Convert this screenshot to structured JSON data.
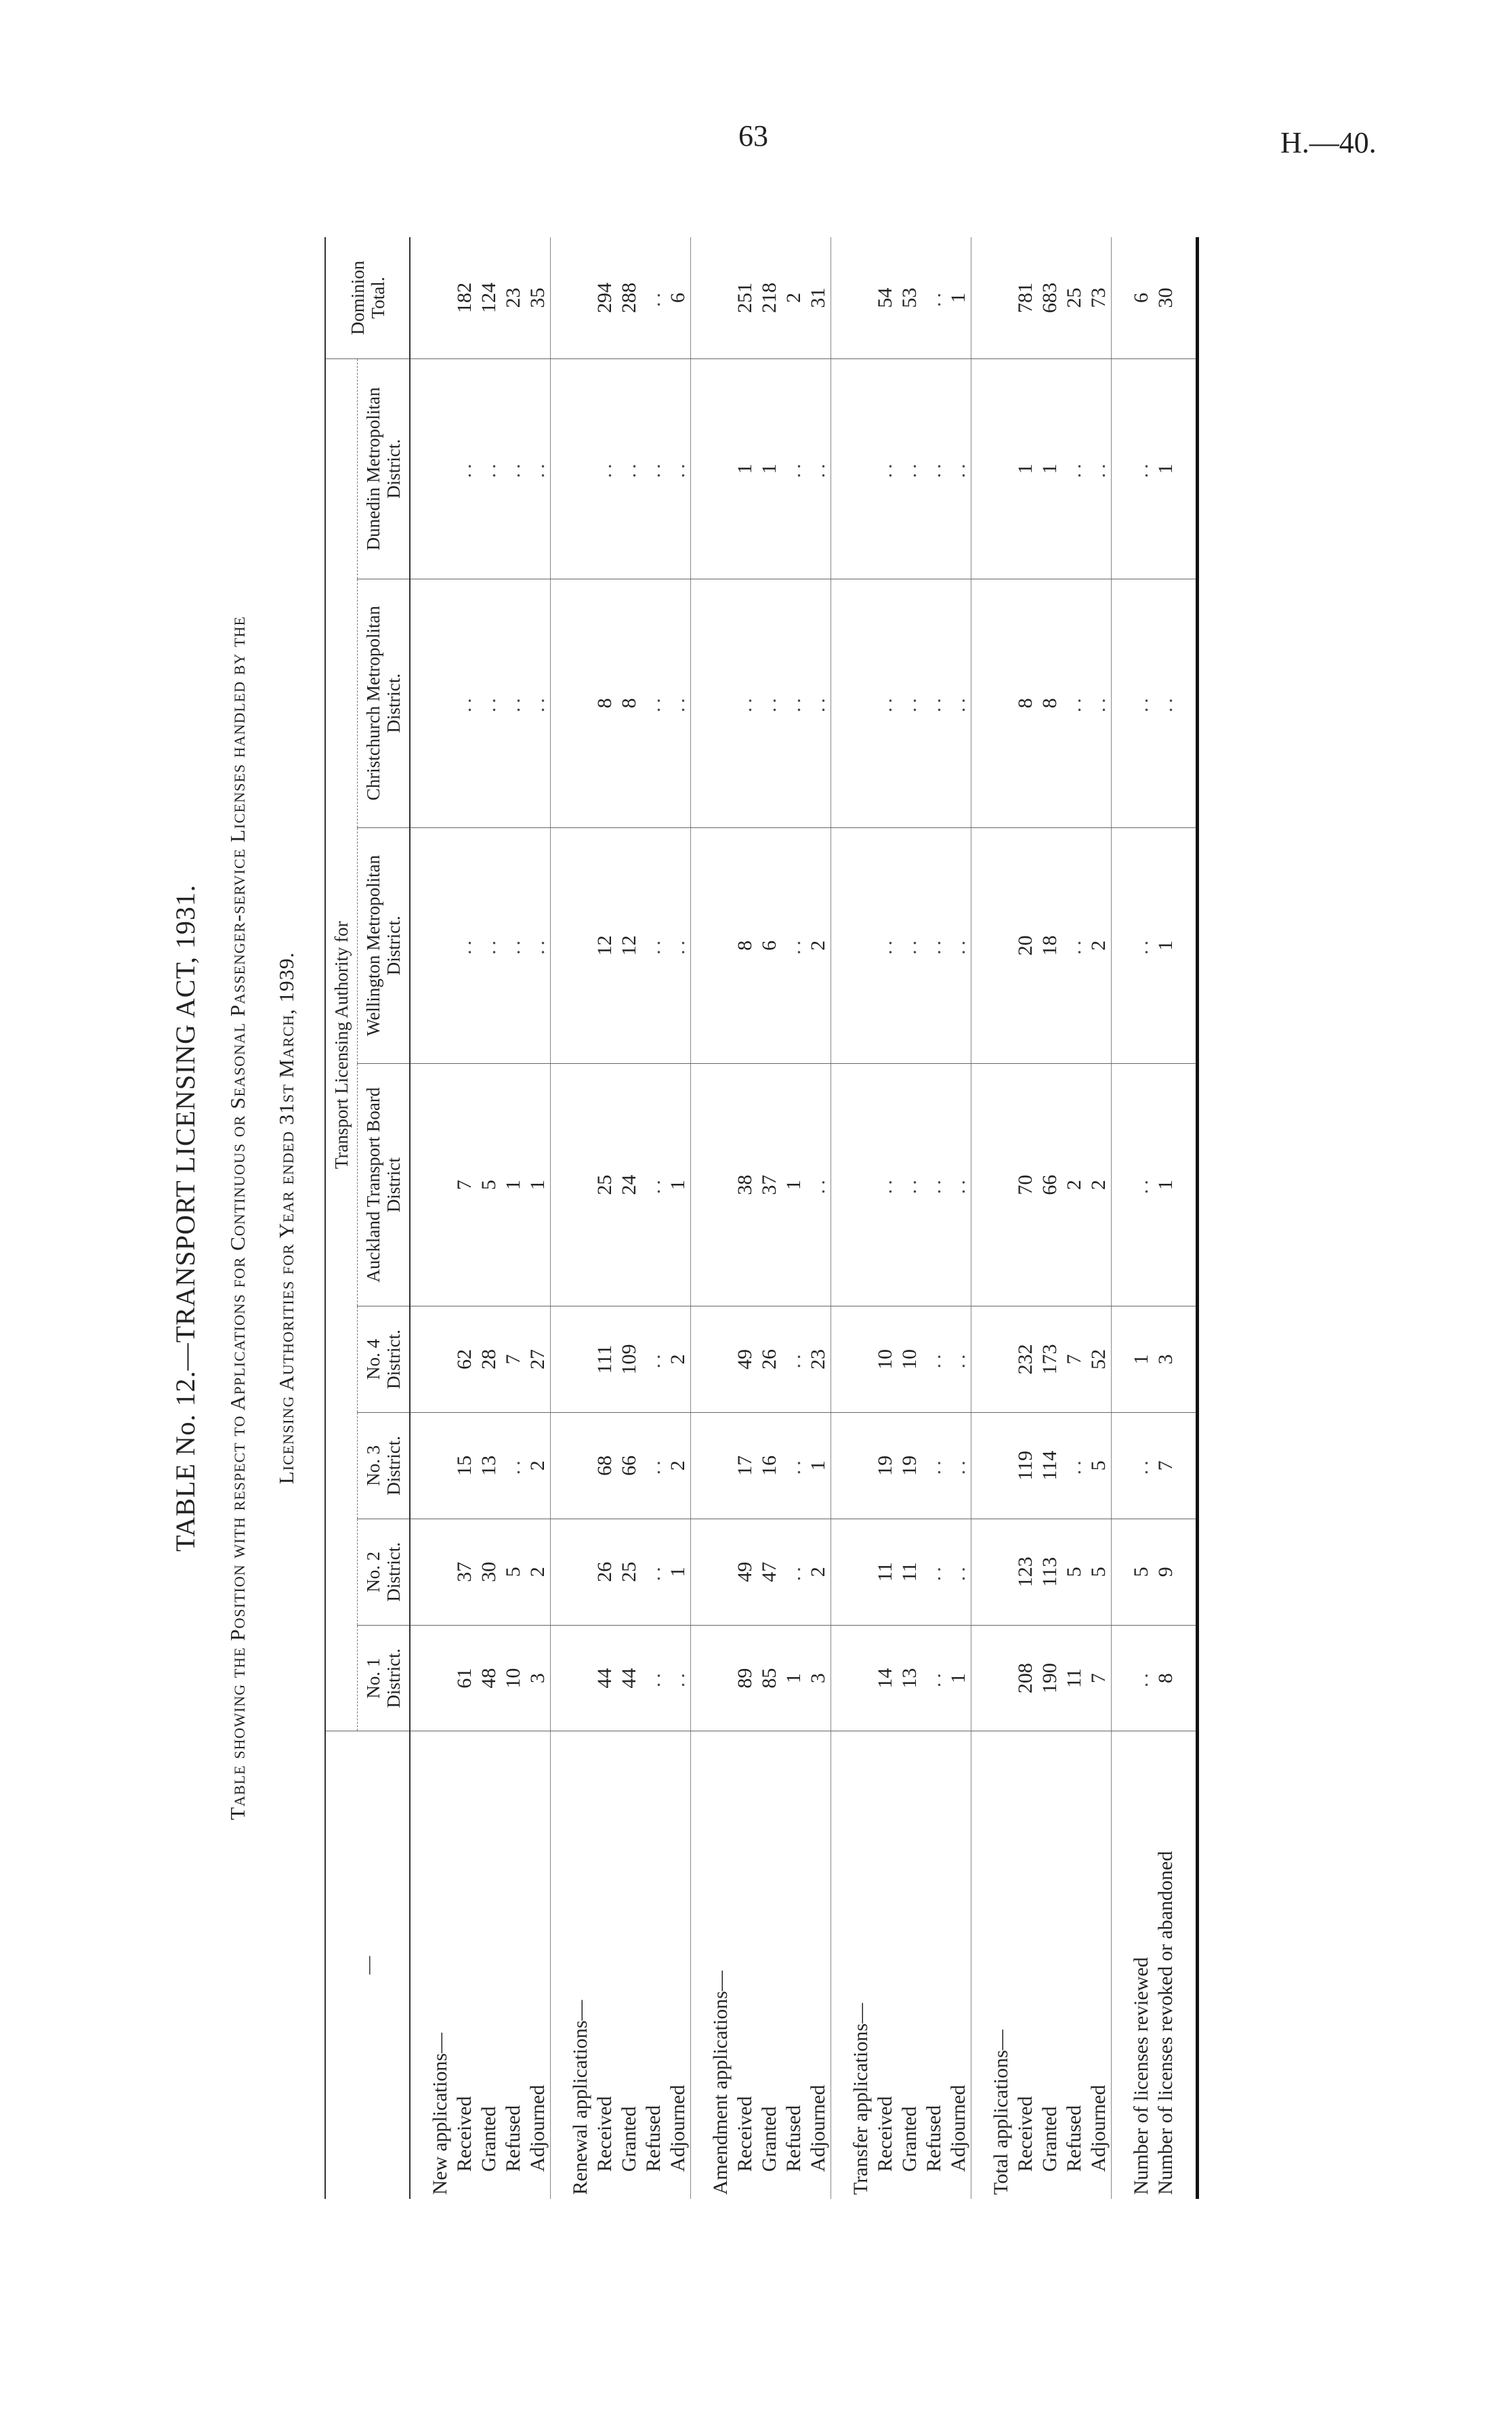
{
  "page_number": "63",
  "document_ref": "H.—40.",
  "title": "TABLE No. 12.—TRANSPORT LICENSING ACT, 1931.",
  "subtitle_line1": "Table showing the Position with respect to Applications for Continuous or Seasonal Passenger-service Licenses handled by the",
  "subtitle_line2": "Licensing Authorities for Year ended 31st March, 1939.",
  "group_header": "Transport Licensing Authority for",
  "columns": [
    "No. 1 District.",
    "No. 2 District.",
    "No. 3 District.",
    "No. 4 District.",
    "Auckland Transport Board District",
    "Wellington Metropolitan District.",
    "Christchurch Metropolitan District.",
    "Dunedin Metropolitan District.",
    "Dominion Total."
  ],
  "groups": [
    {
      "heading": "New applications—",
      "rows": [
        {
          "label": "Received",
          "values": [
            "61",
            "37",
            "15",
            "62",
            "7",
            "..",
            "..",
            "..",
            "182"
          ]
        },
        {
          "label": "Granted",
          "values": [
            "48",
            "30",
            "13",
            "28",
            "5",
            "..",
            "..",
            "..",
            "124"
          ]
        },
        {
          "label": "Refused",
          "values": [
            "10",
            "5",
            "..",
            "7",
            "1",
            "..",
            "..",
            "..",
            "23"
          ]
        },
        {
          "label": "Adjourned",
          "values": [
            "3",
            "2",
            "2",
            "27",
            "1",
            "..",
            "..",
            "..",
            "35"
          ]
        }
      ]
    },
    {
      "heading": "Renewal applications—",
      "rows": [
        {
          "label": "Received",
          "values": [
            "44",
            "26",
            "68",
            "111",
            "25",
            "12",
            "8",
            "..",
            "294"
          ]
        },
        {
          "label": "Granted",
          "values": [
            "44",
            "25",
            "66",
            "109",
            "24",
            "12",
            "8",
            "..",
            "288"
          ]
        },
        {
          "label": "Refused",
          "values": [
            "..",
            "..",
            "..",
            "..",
            "..",
            "..",
            "..",
            "..",
            ".."
          ]
        },
        {
          "label": "Adjourned",
          "values": [
            "..",
            "1",
            "2",
            "2",
            "1",
            "..",
            "..",
            "..",
            "6"
          ]
        }
      ]
    },
    {
      "heading": "Amendment applications—",
      "rows": [
        {
          "label": "Received",
          "values": [
            "89",
            "49",
            "17",
            "49",
            "38",
            "8",
            "..",
            "1",
            "251"
          ]
        },
        {
          "label": "Granted",
          "values": [
            "85",
            "47",
            "16",
            "26",
            "37",
            "6",
            "..",
            "1",
            "218"
          ]
        },
        {
          "label": "Refused",
          "values": [
            "1",
            "..",
            "..",
            "..",
            "1",
            "..",
            "..",
            "..",
            "2"
          ]
        },
        {
          "label": "Adjourned",
          "values": [
            "3",
            "2",
            "1",
            "23",
            "..",
            "2",
            "..",
            "..",
            "31"
          ]
        }
      ]
    },
    {
      "heading": "Transfer applications—",
      "rows": [
        {
          "label": "Received",
          "values": [
            "14",
            "11",
            "19",
            "10",
            "..",
            "..",
            "..",
            "..",
            "54"
          ]
        },
        {
          "label": "Granted",
          "values": [
            "13",
            "11",
            "19",
            "10",
            "..",
            "..",
            "..",
            "..",
            "53"
          ]
        },
        {
          "label": "Refused",
          "values": [
            "..",
            "..",
            "..",
            "..",
            "..",
            "..",
            "..",
            "..",
            ".."
          ]
        },
        {
          "label": "Adjourned",
          "values": [
            "1",
            "..",
            "..",
            "..",
            "..",
            "..",
            "..",
            "..",
            "1"
          ]
        }
      ]
    },
    {
      "heading": "Total applications—",
      "rows": [
        {
          "label": "Received",
          "values": [
            "208",
            "123",
            "119",
            "232",
            "70",
            "20",
            "8",
            "1",
            "781"
          ]
        },
        {
          "label": "Granted",
          "values": [
            "190",
            "113",
            "114",
            "173",
            "66",
            "18",
            "8",
            "1",
            "683"
          ]
        },
        {
          "label": "Refused",
          "values": [
            "11",
            "5",
            "..",
            "7",
            "2",
            "..",
            "..",
            "..",
            "25"
          ]
        },
        {
          "label": "Adjourned",
          "values": [
            "7",
            "5",
            "5",
            "52",
            "2",
            "2",
            "..",
            "..",
            "73"
          ]
        }
      ]
    },
    {
      "heading": "",
      "rows": [
        {
          "label": "Number of licenses reviewed",
          "values": [
            "..",
            "5",
            "..",
            "1",
            "..",
            "..",
            "..",
            "..",
            "6"
          ]
        },
        {
          "label": "Number of licenses revoked or abandoned",
          "values": [
            "8",
            "9",
            "7",
            "3",
            "1",
            "1",
            "..",
            "1",
            "30"
          ]
        }
      ]
    }
  ]
}
